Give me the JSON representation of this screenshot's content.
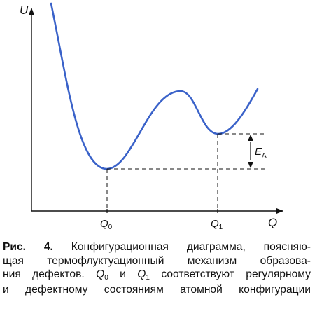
{
  "diagram": {
    "y_axis_label": "U",
    "x_axis_label": "Q",
    "q0_label": "Q",
    "q0_sub": "0",
    "q1_label": "Q",
    "q1_sub": "1",
    "ea_label": "E",
    "ea_sub": "A",
    "curve_color": "#3a62c9",
    "axis_color": "#111111"
  },
  "caption": {
    "label": "Рис. 4.",
    "line1": "Конфигурационная диаграмма, поясняю-",
    "line2": "щая термофлуктуационный механизм образова-",
    "line3_a": "ния дефектов.",
    "q0_sym": "Q",
    "q0_sub": "0",
    "and_word": "и",
    "q1_sym": "Q",
    "q1_sub": "1",
    "line3_b": "соответствуют регулярному",
    "line4": "и дефектному состояниям атомной конфигурации"
  }
}
